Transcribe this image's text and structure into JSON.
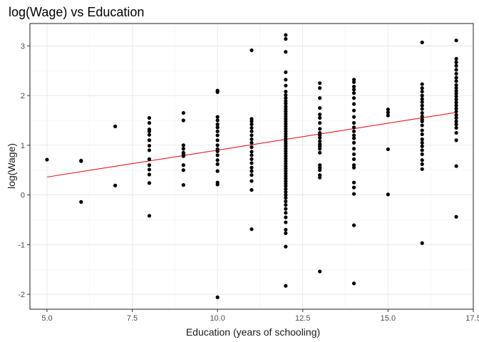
{
  "chart_data": {
    "type": "scatter",
    "title": "log(Wage) vs Education",
    "xlabel": "Education (years of schooling)",
    "ylabel": "log(Wage)",
    "xlim": [
      4.5,
      17.5
    ],
    "ylim": [
      -2.3,
      3.45
    ],
    "x_ticks": [
      5.0,
      7.5,
      10.0,
      12.5,
      15.0,
      17.5
    ],
    "x_tick_labels": [
      "5.0",
      "7.5",
      "10.0",
      "12.5",
      "15.0",
      "17.5"
    ],
    "y_ticks": [
      -2,
      -1,
      0,
      1,
      2,
      3
    ],
    "y_tick_labels": [
      "-2",
      "-1",
      "0",
      "1",
      "2",
      "3"
    ],
    "grid": true,
    "theme": "bw",
    "point_color": "#000000",
    "fit_line_color": "#e41a1c",
    "fit_line": {
      "x": [
        5,
        17
      ],
      "y": [
        0.36,
        1.66
      ]
    },
    "series": [
      {
        "points": [
          [
            5,
            0.71
          ],
          [
            6,
            0.69
          ],
          [
            6,
            0.68
          ],
          [
            6,
            -0.14
          ],
          [
            7,
            1.38
          ],
          [
            7,
            0.19
          ],
          [
            8,
            1.55
          ],
          [
            8,
            1.45
          ],
          [
            8,
            1.32
          ],
          [
            8,
            1.28
          ],
          [
            8,
            1.21
          ],
          [
            8,
            1.1
          ],
          [
            8,
            0.99
          ],
          [
            8,
            0.9
          ],
          [
            8,
            0.72
          ],
          [
            8,
            0.6
          ],
          [
            8,
            0.51
          ],
          [
            8,
            0.41
          ],
          [
            8,
            0.24
          ],
          [
            8,
            -0.42
          ],
          [
            9,
            1.65
          ],
          [
            9,
            1.5
          ],
          [
            9,
            1.0
          ],
          [
            9,
            0.93
          ],
          [
            9,
            0.85
          ],
          [
            9,
            0.82
          ],
          [
            9,
            0.78
          ],
          [
            9,
            0.6
          ],
          [
            9,
            0.5
          ],
          [
            9,
            0.2
          ],
          [
            10,
            2.1
          ],
          [
            10,
            2.07
          ],
          [
            10,
            1.57
          ],
          [
            10,
            1.5
          ],
          [
            10,
            1.42
          ],
          [
            10,
            1.36
          ],
          [
            10,
            1.28
          ],
          [
            10,
            1.2
          ],
          [
            10,
            1.1
          ],
          [
            10,
            1.0
          ],
          [
            10,
            0.92
          ],
          [
            10,
            0.88
          ],
          [
            10,
            0.8
          ],
          [
            10,
            0.7
          ],
          [
            10,
            0.62
          ],
          [
            10,
            0.48
          ],
          [
            10,
            0.25
          ],
          [
            10,
            0.21
          ],
          [
            10,
            -2.06
          ],
          [
            11,
            2.91
          ],
          [
            11,
            1.53
          ],
          [
            11,
            1.48
          ],
          [
            11,
            1.42
          ],
          [
            11,
            1.35
          ],
          [
            11,
            1.28
          ],
          [
            11,
            1.2
          ],
          [
            11,
            1.12
          ],
          [
            11,
            1.05
          ],
          [
            11,
            0.96
          ],
          [
            11,
            0.87
          ],
          [
            11,
            0.8
          ],
          [
            11,
            0.72
          ],
          [
            11,
            0.64
          ],
          [
            11,
            0.55
          ],
          [
            11,
            0.48
          ],
          [
            11,
            0.4
          ],
          [
            11,
            0.28
          ],
          [
            11,
            0.1
          ],
          [
            11,
            -0.69
          ],
          [
            12,
            3.22
          ],
          [
            12,
            3.14
          ],
          [
            12,
            2.88
          ],
          [
            12,
            2.47
          ],
          [
            12,
            2.32
          ],
          [
            12,
            2.2
          ],
          [
            12,
            2.08
          ],
          [
            12,
            2.01
          ],
          [
            12,
            1.95
          ],
          [
            12,
            1.89
          ],
          [
            12,
            1.84
          ],
          [
            12,
            1.78
          ],
          [
            12,
            1.73
          ],
          [
            12,
            1.68
          ],
          [
            12,
            1.63
          ],
          [
            12,
            1.58
          ],
          [
            12,
            1.53
          ],
          [
            12,
            1.48
          ],
          [
            12,
            1.43
          ],
          [
            12,
            1.38
          ],
          [
            12,
            1.33
          ],
          [
            12,
            1.28
          ],
          [
            12,
            1.23
          ],
          [
            12,
            1.18
          ],
          [
            12,
            1.13
          ],
          [
            12,
            1.08
          ],
          [
            12,
            1.03
          ],
          [
            12,
            0.98
          ],
          [
            12,
            0.93
          ],
          [
            12,
            0.88
          ],
          [
            12,
            0.83
          ],
          [
            12,
            0.78
          ],
          [
            12,
            0.73
          ],
          [
            12,
            0.68
          ],
          [
            12,
            0.63
          ],
          [
            12,
            0.58
          ],
          [
            12,
            0.53
          ],
          [
            12,
            0.48
          ],
          [
            12,
            0.43
          ],
          [
            12,
            0.38
          ],
          [
            12,
            0.33
          ],
          [
            12,
            0.28
          ],
          [
            12,
            0.23
          ],
          [
            12,
            0.18
          ],
          [
            12,
            0.12
          ],
          [
            12,
            0.06
          ],
          [
            12,
            0.0
          ],
          [
            12,
            -0.06
          ],
          [
            12,
            -0.13
          ],
          [
            12,
            -0.2
          ],
          [
            12,
            -0.28
          ],
          [
            12,
            -0.36
          ],
          [
            12,
            -0.45
          ],
          [
            12,
            -0.55
          ],
          [
            12,
            -0.7
          ],
          [
            12,
            -0.77
          ],
          [
            12,
            -1.04
          ],
          [
            12,
            -1.83
          ],
          [
            13,
            2.25
          ],
          [
            13,
            2.15
          ],
          [
            13,
            1.95
          ],
          [
            13,
            1.75
          ],
          [
            13,
            1.62
          ],
          [
            13,
            1.55
          ],
          [
            13,
            1.45
          ],
          [
            13,
            1.33
          ],
          [
            13,
            1.25
          ],
          [
            13,
            1.2
          ],
          [
            13,
            1.15
          ],
          [
            13,
            1.08
          ],
          [
            13,
            1.02
          ],
          [
            13,
            0.98
          ],
          [
            13,
            0.93
          ],
          [
            13,
            0.85
          ],
          [
            13,
            0.6
          ],
          [
            13,
            0.55
          ],
          [
            13,
            0.5
          ],
          [
            13,
            0.4
          ],
          [
            13,
            0.35
          ],
          [
            13,
            -1.54
          ],
          [
            14,
            2.32
          ],
          [
            14,
            2.27
          ],
          [
            14,
            2.18
          ],
          [
            14,
            2.12
          ],
          [
            14,
            2.05
          ],
          [
            14,
            1.95
          ],
          [
            14,
            1.83
          ],
          [
            14,
            1.7
          ],
          [
            14,
            1.57
          ],
          [
            14,
            1.45
          ],
          [
            14,
            1.36
          ],
          [
            14,
            1.28
          ],
          [
            14,
            1.2
          ],
          [
            14,
            1.14
          ],
          [
            14,
            1.05
          ],
          [
            14,
            0.93
          ],
          [
            14,
            0.82
          ],
          [
            14,
            0.72
          ],
          [
            14,
            0.6
          ],
          [
            14,
            0.55
          ],
          [
            14,
            0.25
          ],
          [
            14,
            0.15
          ],
          [
            14,
            0.02
          ],
          [
            14,
            -0.61
          ],
          [
            14,
            -1.78
          ],
          [
            15,
            1.72
          ],
          [
            15,
            1.66
          ],
          [
            15,
            1.6
          ],
          [
            15,
            0.92
          ],
          [
            15,
            0.01
          ],
          [
            16,
            3.07
          ],
          [
            16,
            2.23
          ],
          [
            16,
            2.15
          ],
          [
            16,
            2.08
          ],
          [
            16,
            2.0
          ],
          [
            16,
            1.93
          ],
          [
            16,
            1.87
          ],
          [
            16,
            1.8
          ],
          [
            16,
            1.73
          ],
          [
            16,
            1.65
          ],
          [
            16,
            1.58
          ],
          [
            16,
            1.52
          ],
          [
            16,
            1.48
          ],
          [
            16,
            1.4
          ],
          [
            16,
            1.3
          ],
          [
            16,
            1.22
          ],
          [
            16,
            1.12
          ],
          [
            16,
            1.05
          ],
          [
            16,
            0.98
          ],
          [
            16,
            0.9
          ],
          [
            16,
            0.82
          ],
          [
            16,
            0.7
          ],
          [
            16,
            0.62
          ],
          [
            16,
            0.52
          ],
          [
            16,
            -0.97
          ],
          [
            17,
            3.11
          ],
          [
            17,
            2.74
          ],
          [
            17,
            2.67
          ],
          [
            17,
            2.6
          ],
          [
            17,
            2.52
          ],
          [
            17,
            2.44
          ],
          [
            17,
            2.36
          ],
          [
            17,
            2.29
          ],
          [
            17,
            2.21
          ],
          [
            17,
            2.15
          ],
          [
            17,
            2.09
          ],
          [
            17,
            2.04
          ],
          [
            17,
            1.98
          ],
          [
            17,
            1.92
          ],
          [
            17,
            1.86
          ],
          [
            17,
            1.8
          ],
          [
            17,
            1.74
          ],
          [
            17,
            1.68
          ],
          [
            17,
            1.61
          ],
          [
            17,
            1.55
          ],
          [
            17,
            1.48
          ],
          [
            17,
            1.42
          ],
          [
            17,
            1.35
          ],
          [
            17,
            1.25
          ],
          [
            17,
            1.1
          ],
          [
            17,
            0.58
          ],
          [
            17,
            -0.44
          ]
        ]
      }
    ]
  }
}
